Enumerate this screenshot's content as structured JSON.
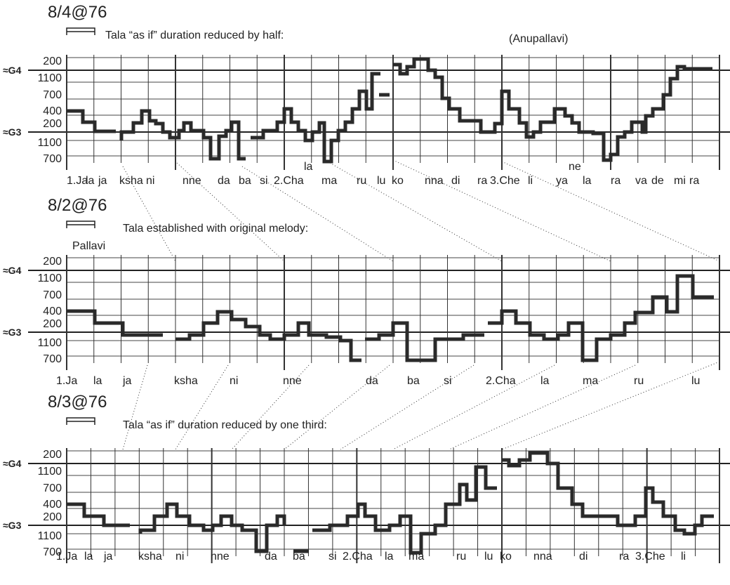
{
  "panels": [
    {
      "title": "8/4@76",
      "note": "Tala “as if” duration reduced by half:",
      "section": "(Anupallavi)",
      "pitch_labels": [
        "≈G4",
        "≈G3"
      ],
      "y_labels": [
        "200",
        "1100",
        "700",
        "400",
        "200",
        "1100",
        "700"
      ],
      "syllables": [
        "1.Ja",
        "la",
        "ja",
        "ksha",
        "ni",
        "nne",
        "da",
        "ba",
        "si",
        "2.Cha",
        "ma",
        "ru",
        "lu",
        "ko",
        "nna",
        "di",
        "ra",
        "3.Che",
        "li",
        "ya",
        "la",
        "ra",
        "va",
        "de",
        "mi",
        "ra"
      ],
      "upper_syllables": [
        "la",
        "ne"
      ]
    },
    {
      "title": "8/2@76",
      "note": "Tala established with original melody:",
      "section": "Pallavi",
      "pitch_labels": [
        "≈G4",
        "≈G3"
      ],
      "y_labels": [
        "200",
        "1100",
        "700",
        "400",
        "200",
        "1100",
        "700"
      ],
      "syllables": [
        "1.Ja",
        "la",
        "ja",
        "ksha",
        "ni",
        "nne",
        "da",
        "ba",
        "si",
        "2.Cha",
        "la",
        "ma",
        "ru",
        "lu"
      ]
    },
    {
      "title": "8/3@76",
      "note": "Tala “as if” duration reduced by one third:",
      "pitch_labels": [
        "≈G4",
        "≈G3"
      ],
      "y_labels": [
        "200",
        "1100",
        "700",
        "400",
        "200",
        "1100",
        "700"
      ],
      "syllables": [
        "1.Ja",
        "la",
        "ja",
        "ksha",
        "ni",
        "nne",
        "da",
        "ba",
        "si",
        "2.Cha",
        "la",
        "ma",
        "ru",
        "lu",
        "ko",
        "nna",
        "di",
        "ra",
        "3.Che",
        "li"
      ]
    }
  ]
}
